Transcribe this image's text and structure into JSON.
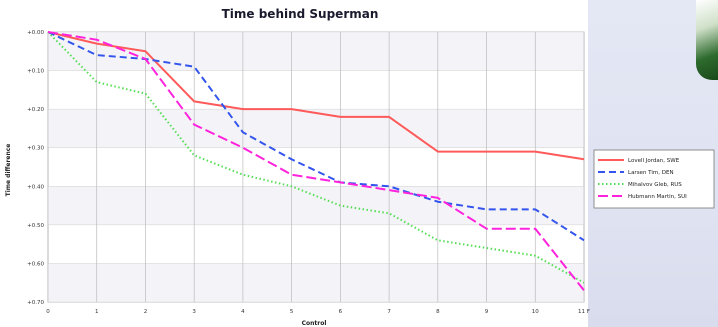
{
  "chart_data": {
    "type": "line",
    "title": "Time behind Superman",
    "xlabel": "Control",
    "ylabel": "Time difference",
    "x": [
      0,
      1,
      2,
      3,
      4,
      5,
      6,
      7,
      8,
      9,
      10,
      11
    ],
    "x_tick_labels": [
      "0",
      "1",
      "2",
      "3",
      "4",
      "5",
      "6",
      "7",
      "8",
      "9",
      "10",
      "11 F"
    ],
    "xlim": [
      0,
      11
    ],
    "y_tick_labels": [
      "+0.00",
      "+0.10",
      "+0.20",
      "+0.30",
      "+0.40",
      "+0.50",
      "+0.60",
      "+0.70"
    ],
    "ylim": [
      0,
      0.7
    ],
    "grid": true,
    "legend_position": "right",
    "series": [
      {
        "name": "Lovell Jordan, SWE",
        "color": "#ff5a5a",
        "dash": "solid",
        "values": [
          0.0,
          0.03,
          0.05,
          0.18,
          0.2,
          0.2,
          0.22,
          0.22,
          0.31,
          0.31,
          0.31,
          0.33
        ]
      },
      {
        "name": "Larsen Tim, DEN",
        "color": "#3355ee",
        "dash": "dashed",
        "values": [
          0.0,
          0.06,
          0.07,
          0.09,
          0.26,
          0.33,
          0.39,
          0.4,
          0.44,
          0.46,
          0.46,
          0.54
        ]
      },
      {
        "name": "Mihalvov Gleb, RUS",
        "color": "#55dd55",
        "dash": "dotted",
        "values": [
          0.0,
          0.13,
          0.16,
          0.32,
          0.37,
          0.4,
          0.45,
          0.47,
          0.54,
          0.56,
          0.58,
          0.65
        ]
      },
      {
        "name": "Hubmann Martin, SUI",
        "color": "#ff22dd",
        "dash": "dashdot",
        "values": [
          0.0,
          0.02,
          0.07,
          0.24,
          0.3,
          0.37,
          0.39,
          0.41,
          0.43,
          0.51,
          0.51,
          0.67
        ]
      }
    ]
  }
}
